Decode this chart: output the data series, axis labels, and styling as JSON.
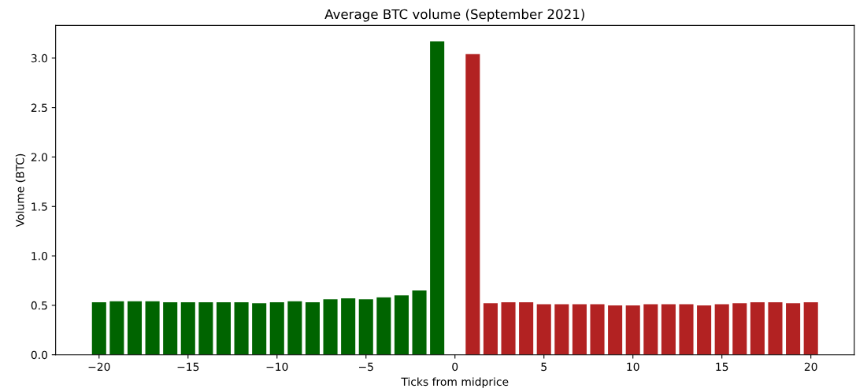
{
  "chart_data": {
    "type": "bar",
    "title": "Average BTC volume (September 2021)",
    "xlabel": "Ticks from midprice",
    "ylabel": "Volume (BTC)",
    "series": [
      {
        "color": "#006400",
        "x": [
          -20,
          -19,
          -18,
          -17,
          -16,
          -15,
          -14,
          -13,
          -12,
          -11,
          -10,
          -9,
          -8,
          -7,
          -6,
          -5,
          -4,
          -3,
          -2,
          -1
        ],
        "values": [
          0.53,
          0.54,
          0.54,
          0.54,
          0.53,
          0.53,
          0.53,
          0.53,
          0.53,
          0.52,
          0.53,
          0.54,
          0.53,
          0.56,
          0.57,
          0.56,
          0.58,
          0.6,
          0.65,
          3.17
        ]
      },
      {
        "color": "#b22222",
        "x": [
          1,
          2,
          3,
          4,
          5,
          6,
          7,
          8,
          9,
          10,
          11,
          12,
          13,
          14,
          15,
          16,
          17,
          18,
          19,
          20
        ],
        "values": [
          3.04,
          0.52,
          0.53,
          0.53,
          0.51,
          0.51,
          0.51,
          0.51,
          0.5,
          0.5,
          0.51,
          0.51,
          0.51,
          0.5,
          0.51,
          0.52,
          0.53,
          0.53,
          0.52,
          0.53
        ]
      }
    ],
    "xlim": [
      -22.44,
      22.44
    ],
    "xticks": [
      {
        "value": -20,
        "label": "−20"
      },
      {
        "value": -15,
        "label": "−15"
      },
      {
        "value": -10,
        "label": "−10"
      },
      {
        "value": -5,
        "label": "−5"
      },
      0,
      5,
      10,
      15,
      20
    ],
    "ylim": [
      0,
      3.33
    ],
    "yticks": [
      {
        "value": 0,
        "label": "0.0"
      },
      0.5,
      {
        "value": 1,
        "label": "1.0"
      },
      1.5,
      {
        "value": 2,
        "label": "2.0"
      },
      2.5,
      {
        "value": 3,
        "label": "3.0"
      }
    ],
    "grid": false,
    "legend": false
  }
}
